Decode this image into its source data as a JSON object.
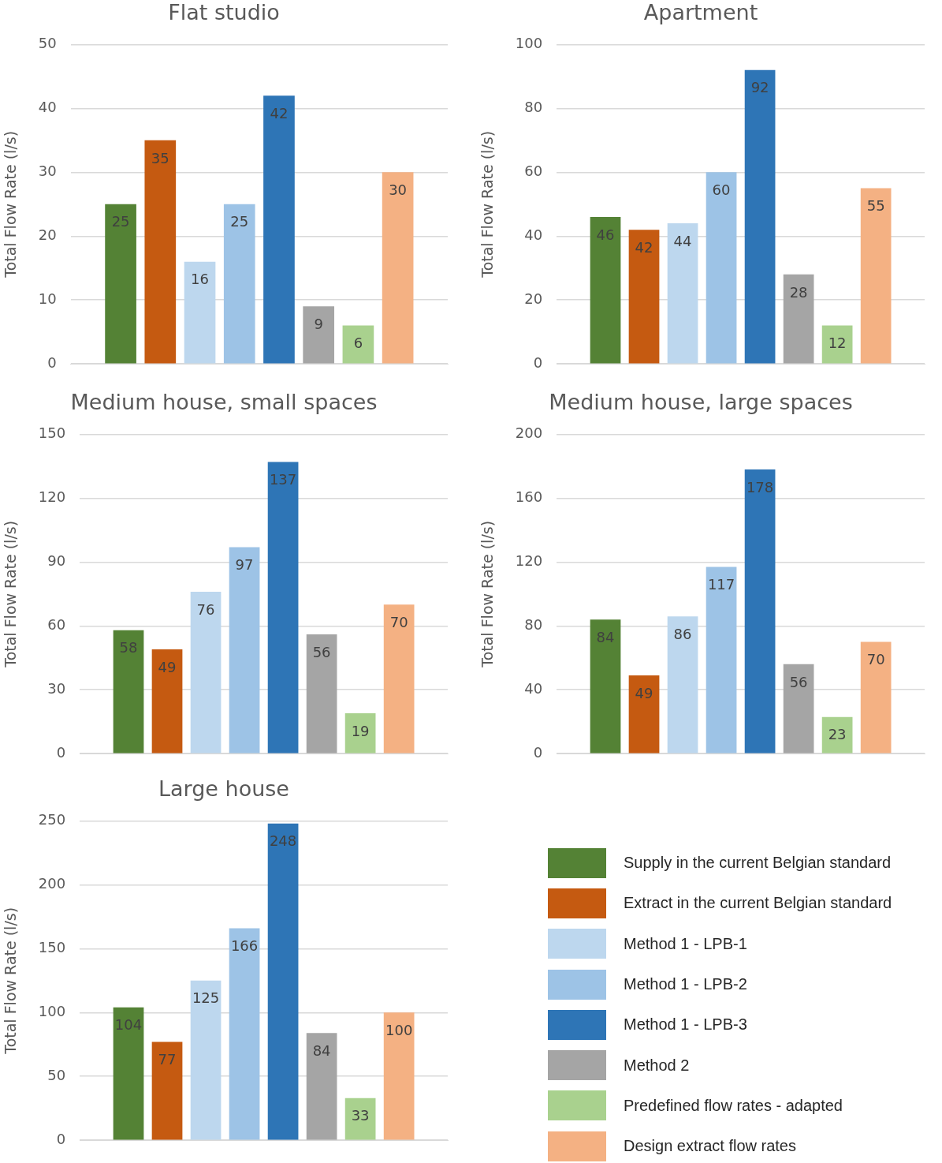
{
  "chart_data": [
    {
      "type": "bar",
      "title": "Flat studio",
      "ylabel": "Total Flow Rate (l/s)",
      "categories": [
        null
      ],
      "ylim": [
        0,
        50
      ],
      "yticks": [
        0,
        10,
        20,
        30,
        40,
        50
      ],
      "grid": "y",
      "tick_labels": "y",
      "data_labels": true,
      "series": [
        {
          "color": "#548235",
          "values": [
            25
          ]
        },
        {
          "color": "#c55a11",
          "values": [
            35
          ]
        },
        {
          "color": "#bdd7ee",
          "values": [
            16
          ]
        },
        {
          "color": "#9dc3e6",
          "values": [
            25
          ]
        },
        {
          "color": "#2e75b6",
          "values": [
            42
          ]
        },
        {
          "color": "#a5a5a5",
          "values": [
            9
          ]
        },
        {
          "color": "#a9d18e",
          "values": [
            6
          ]
        },
        {
          "color": "#f4b183",
          "values": [
            30
          ]
        }
      ]
    },
    {
      "type": "bar",
      "title": "Apartment",
      "ylabel": "Total Flow Rate (l/s)",
      "categories": [
        null
      ],
      "ylim": [
        0,
        100
      ],
      "yticks": [
        0,
        20,
        40,
        60,
        80,
        100
      ],
      "grid": "y",
      "tick_labels": "y",
      "data_labels": true,
      "series": [
        {
          "color": "#548235",
          "values": [
            46
          ]
        },
        {
          "color": "#c55a11",
          "values": [
            42
          ]
        },
        {
          "color": "#bdd7ee",
          "values": [
            44
          ]
        },
        {
          "color": "#9dc3e6",
          "values": [
            60
          ]
        },
        {
          "color": "#2e75b6",
          "values": [
            92
          ]
        },
        {
          "color": "#a5a5a5",
          "values": [
            28
          ]
        },
        {
          "color": "#a9d18e",
          "values": [
            12
          ]
        },
        {
          "color": "#f4b183",
          "values": [
            55
          ]
        }
      ]
    },
    {
      "type": "bar",
      "title": "Medium house, small spaces",
      "ylabel": "Total Flow Rate (l/s)",
      "categories": [
        null
      ],
      "ylim": [
        0,
        150
      ],
      "yticks": [
        0,
        30,
        60,
        90,
        120,
        150
      ],
      "grid": "y",
      "tick_labels": "y",
      "data_labels": true,
      "series": [
        {
          "color": "#548235",
          "values": [
            58
          ]
        },
        {
          "color": "#c55a11",
          "values": [
            49
          ]
        },
        {
          "color": "#bdd7ee",
          "values": [
            76
          ]
        },
        {
          "color": "#9dc3e6",
          "values": [
            97
          ]
        },
        {
          "color": "#2e75b6",
          "values": [
            137
          ]
        },
        {
          "color": "#a5a5a5",
          "values": [
            56
          ]
        },
        {
          "color": "#a9d18e",
          "values": [
            19
          ]
        },
        {
          "color": "#f4b183",
          "values": [
            70
          ]
        }
      ]
    },
    {
      "type": "bar",
      "title": "Medium house, large spaces",
      "ylabel": "Total Flow Rate (l/s)",
      "categories": [
        null
      ],
      "ylim": [
        0,
        200
      ],
      "yticks": [
        0,
        40,
        80,
        120,
        160,
        200
      ],
      "grid": "y",
      "tick_labels": "y",
      "data_labels": true,
      "series": [
        {
          "color": "#548235",
          "values": [
            84
          ]
        },
        {
          "color": "#c55a11",
          "values": [
            49
          ]
        },
        {
          "color": "#bdd7ee",
          "values": [
            86
          ]
        },
        {
          "color": "#9dc3e6",
          "values": [
            117
          ]
        },
        {
          "color": "#2e75b6",
          "values": [
            178
          ]
        },
        {
          "color": "#a5a5a5",
          "values": [
            56
          ]
        },
        {
          "color": "#a9d18e",
          "values": [
            23
          ]
        },
        {
          "color": "#f4b183",
          "values": [
            70
          ]
        }
      ]
    },
    {
      "type": "bar",
      "title": "Large house",
      "ylabel": "Total Flow Rate (l/s)",
      "categories": [
        null
      ],
      "ylim": [
        0,
        250
      ],
      "yticks": [
        0,
        50,
        100,
        150,
        200,
        250
      ],
      "grid": "y",
      "tick_labels": "y",
      "data_labels": true,
      "legend": "right",
      "series": [
        {
          "name": "Supply in the current Belgian standard",
          "color": "#548235",
          "values": [
            104
          ]
        },
        {
          "name": "Extract in the current Belgian standard",
          "color": "#c55a11",
          "values": [
            77
          ]
        },
        {
          "name": "Method 1 - LPB-1",
          "color": "#bdd7ee",
          "values": [
            125
          ]
        },
        {
          "name": "Method 1 - LPB-2",
          "color": "#9dc3e6",
          "values": [
            166
          ]
        },
        {
          "name": "Method 1 - LPB-3",
          "color": "#2e75b6",
          "values": [
            248
          ]
        },
        {
          "name": "Method 2",
          "color": "#a5a5a5",
          "values": [
            84
          ]
        },
        {
          "name": "Predefined flow rates - adapted",
          "color": "#a9d18e",
          "values": [
            33
          ]
        },
        {
          "name": "Design extract flow rates",
          "color": "#f4b183",
          "values": [
            100
          ]
        }
      ]
    }
  ]
}
